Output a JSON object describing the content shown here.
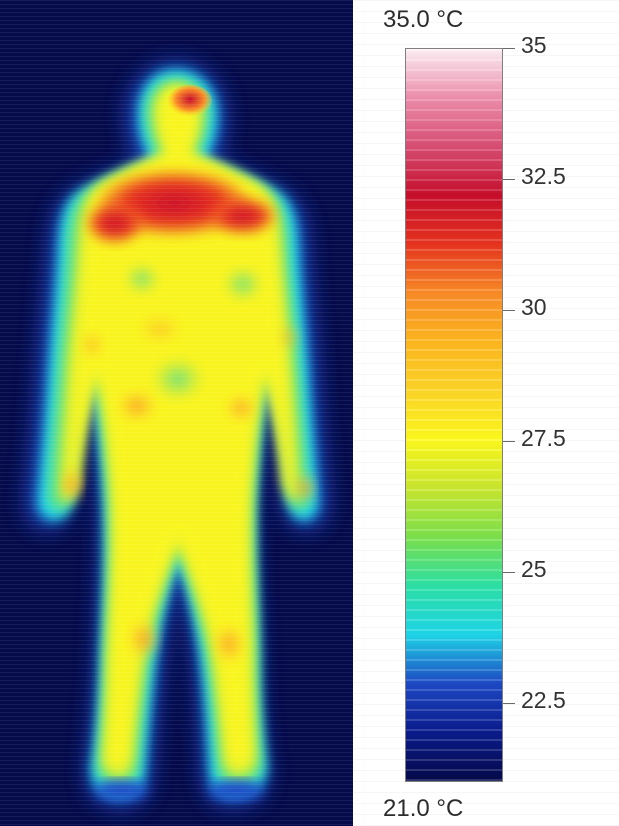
{
  "legend": {
    "max_label": "35.0 °C",
    "min_label": "21.0 °C",
    "scale_min": 21.0,
    "scale_max": 35.0,
    "ticks": [
      {
        "value": 35,
        "label": "35"
      },
      {
        "value": 32.5,
        "label": "32.5"
      },
      {
        "value": 30,
        "label": "30"
      },
      {
        "value": 27.5,
        "label": "27.5"
      },
      {
        "value": 25,
        "label": "25"
      },
      {
        "value": 22.5,
        "label": "22.5"
      }
    ],
    "palette": [
      "#050a4a",
      "#0a1b8d",
      "#1d49c6",
      "#1fd7ea",
      "#2de2a7",
      "#7de24c",
      "#cbe82f",
      "#fffb1d",
      "#ffd628",
      "#ffb81f",
      "#fb8c27",
      "#e8341e",
      "#c80e2c",
      "#d94e73",
      "#ef8fae",
      "#fff1f6"
    ]
  },
  "thermal_image": {
    "background_color": "#050a4a"
  }
}
